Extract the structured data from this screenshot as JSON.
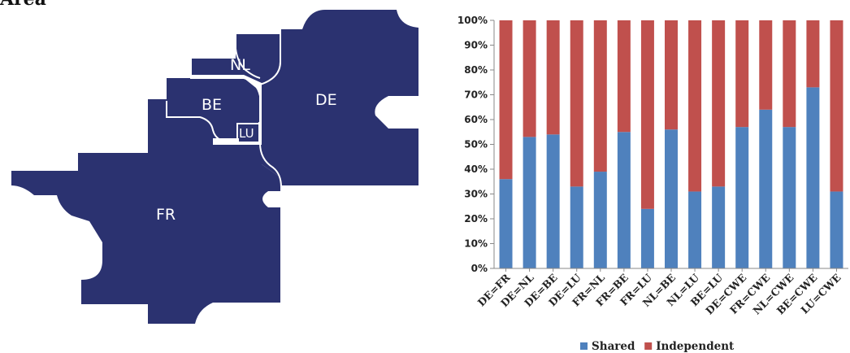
{
  "title": "Area",
  "map": {
    "fill_color": "#2b3270",
    "border_color": "#ffffff",
    "regions": {
      "fr": "FR",
      "de": "DE",
      "nl": "NL",
      "be": "BE",
      "lu": "LU"
    }
  },
  "chart_data": {
    "type": "bar",
    "stacked": true,
    "percent": true,
    "categories": [
      "DE=FR",
      "DE=NL",
      "DE=BE",
      "DE=LU",
      "FR=NL",
      "FR=BE",
      "FR=LU",
      "NL=BE",
      "NL=LU",
      "BE=LU",
      "DE=CWE",
      "FR=CWE",
      "NL=CWE",
      "BE=CWE",
      "LU=CWE"
    ],
    "series": [
      {
        "name": "Shared",
        "color": "#4f81bd",
        "values": [
          36,
          53,
          54,
          33,
          39,
          55,
          24,
          56,
          31,
          33,
          57,
          64,
          57,
          73,
          31
        ]
      },
      {
        "name": "Independent",
        "color": "#c0504d",
        "values": [
          64,
          47,
          46,
          67,
          61,
          45,
          76,
          44,
          69,
          67,
          43,
          36,
          43,
          27,
          69
        ]
      }
    ],
    "y_ticks": [
      "0%",
      "10%",
      "20%",
      "30%",
      "40%",
      "50%",
      "60%",
      "70%",
      "80%",
      "90%",
      "100%"
    ],
    "ylim": [
      0,
      100
    ],
    "legend_position": "bottom",
    "grid": false
  }
}
